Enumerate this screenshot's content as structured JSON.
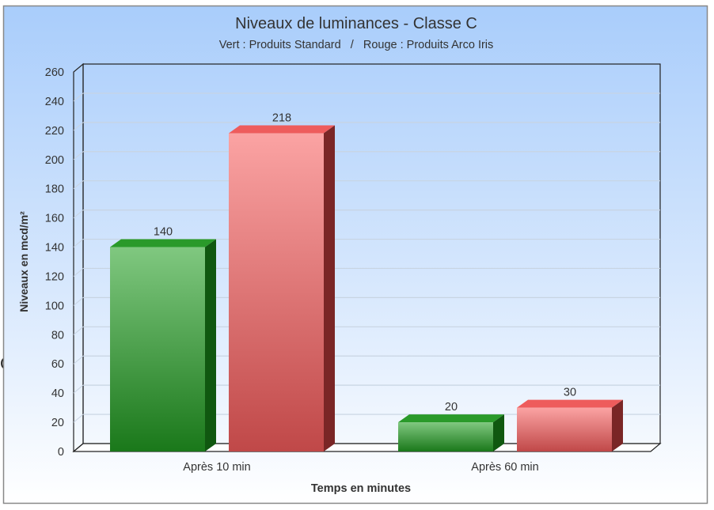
{
  "chart_data": {
    "type": "bar",
    "title": "Niveaux de luminances - Classe C",
    "subtitle": "Vert : Produits Standard   /   Rouge : Produits Arco Iris",
    "xlabel": "Temps en minutes",
    "ylabel": "Niveaux en mcd/m²",
    "categories": [
      "Après 10 min",
      "Après 60 min"
    ],
    "series": [
      {
        "values": [
          140,
          20
        ],
        "color": "#2e9a2e"
      },
      {
        "values": [
          218,
          30
        ],
        "color": "#e05a5a"
      }
    ],
    "ylim": [
      0,
      260
    ],
    "yticks": [
      0,
      20,
      40,
      60,
      80,
      100,
      120,
      140,
      160,
      180,
      200,
      220,
      240,
      260
    ],
    "grid": true,
    "style": "3d"
  },
  "stray_text": "C"
}
